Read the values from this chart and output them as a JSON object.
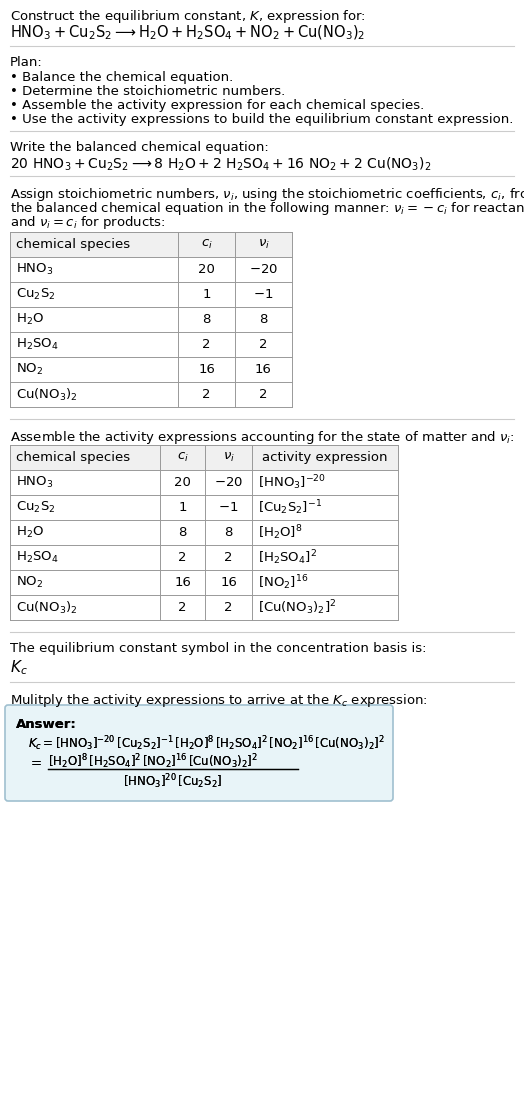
{
  "bg_color": "#ffffff",
  "title_line1": "Construct the equilibrium constant, $K$, expression for:",
  "title_line2": "$\\mathrm{HNO_3 + Cu_2S_2 \\longrightarrow H_2O + H_2SO_4 + NO_2 + Cu(NO_3)_2}$",
  "plan_header": "Plan:",
  "plan_items": [
    "Balance the chemical equation.",
    "Determine the stoichiometric numbers.",
    "Assemble the activity expression for each chemical species.",
    "Use the activity expressions to build the equilibrium constant expression."
  ],
  "balanced_header": "Write the balanced chemical equation:",
  "balanced_eq": "$\\mathrm{20\\ HNO_3 + Cu_2S_2 \\longrightarrow 8\\ H_2O + 2\\ H_2SO_4 + 16\\ NO_2 + 2\\ Cu(NO_3)_2}$",
  "stoich_header_lines": [
    "Assign stoichiometric numbers, $\\nu_i$, using the stoichiometric coefficients, $c_i$, from",
    "the balanced chemical equation in the following manner: $\\nu_i = -c_i$ for reactants",
    "and $\\nu_i = c_i$ for products:"
  ],
  "table1_cols": [
    "chemical species",
    "$c_i$",
    "$\\nu_i$"
  ],
  "table1_data": [
    [
      "$\\mathrm{HNO_3}$",
      "20",
      "$-20$"
    ],
    [
      "$\\mathrm{Cu_2S_2}$",
      "1",
      "$-1$"
    ],
    [
      "$\\mathrm{H_2O}$",
      "8",
      "8"
    ],
    [
      "$\\mathrm{H_2SO_4}$",
      "2",
      "2"
    ],
    [
      "$\\mathrm{NO_2}$",
      "16",
      "16"
    ],
    [
      "$\\mathrm{Cu(NO_3)_2}$",
      "2",
      "2"
    ]
  ],
  "activity_header": "Assemble the activity expressions accounting for the state of matter and $\\nu_i$:",
  "table2_cols": [
    "chemical species",
    "$c_i$",
    "$\\nu_i$",
    "activity expression"
  ],
  "table2_data": [
    [
      "$\\mathrm{HNO_3}$",
      "20",
      "$-20$",
      "$[\\mathrm{HNO_3}]^{-20}$"
    ],
    [
      "$\\mathrm{Cu_2S_2}$",
      "1",
      "$-1$",
      "$[\\mathrm{Cu_2S_2}]^{-1}$"
    ],
    [
      "$\\mathrm{H_2O}$",
      "8",
      "8",
      "$[\\mathrm{H_2O}]^{8}$"
    ],
    [
      "$\\mathrm{H_2SO_4}$",
      "2",
      "2",
      "$[\\mathrm{H_2SO_4}]^{2}$"
    ],
    [
      "$\\mathrm{NO_2}$",
      "16",
      "16",
      "$[\\mathrm{NO_2}]^{16}$"
    ],
    [
      "$\\mathrm{Cu(NO_3)_2}$",
      "2",
      "2",
      "$[\\mathrm{Cu(NO_3)_2}]^{2}$"
    ]
  ],
  "kc_header": "The equilibrium constant symbol in the concentration basis is:",
  "kc_symbol": "$K_c$",
  "multiply_header": "Mulitply the activity expressions to arrive at the $K_c$ expression:",
  "answer_label": "Answer:",
  "answer_line1": "$K_c = [\\mathrm{HNO_3}]^{-20}\\,[\\mathrm{Cu_2S_2}]^{-1}\\,[\\mathrm{H_2O}]^{8}\\,[\\mathrm{H_2SO_4}]^{2}\\,[\\mathrm{NO_2}]^{16}\\,[\\mathrm{Cu(NO_3)_2}]^{2}$",
  "answer_num": "$[\\mathrm{H_2O}]^{8}\\,[\\mathrm{H_2SO_4}]^{2}\\,[\\mathrm{NO_2}]^{16}\\,[\\mathrm{Cu(NO_3)_2}]^{2}$",
  "answer_den": "$[\\mathrm{HNO_3}]^{20}\\,[\\mathrm{Cu_2S_2}]$",
  "answer_box_facecolor": "#e8f4f8",
  "answer_box_edgecolor": "#a0c0d0",
  "separator_color": "#cccccc",
  "table_edge_color": "#999999"
}
